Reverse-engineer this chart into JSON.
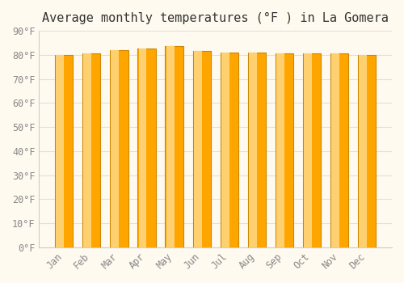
{
  "title": "Average monthly temperatures (°F ) in La Gomera",
  "months": [
    "Jan",
    "Feb",
    "Mar",
    "Apr",
    "May",
    "Jun",
    "Jul",
    "Aug",
    "Sep",
    "Oct",
    "Nov",
    "Dec"
  ],
  "values": [
    80,
    80.5,
    82,
    82.5,
    83.5,
    81.5,
    81,
    81,
    80.5,
    80.5,
    80.5,
    80
  ],
  "bar_color_main": "#FFA500",
  "bar_color_light": "#FFD070",
  "bar_edge_color": "#CC8800",
  "background_color": "#FFFAF0",
  "grid_color": "#E0E0E0",
  "tick_color": "#888888",
  "title_color": "#333333",
  "ylim": [
    0,
    90
  ],
  "yticks": [
    0,
    10,
    20,
    30,
    40,
    50,
    60,
    70,
    80,
    90
  ],
  "ytick_labels": [
    "0°F",
    "10°F",
    "20°F",
    "30°F",
    "40°F",
    "50°F",
    "60°F",
    "70°F",
    "80°F",
    "90°F"
  ],
  "title_fontsize": 11,
  "tick_fontsize": 8.5,
  "xlabel_rotation": 45,
  "bar_width": 0.65,
  "highlight_ratio": 0.45
}
